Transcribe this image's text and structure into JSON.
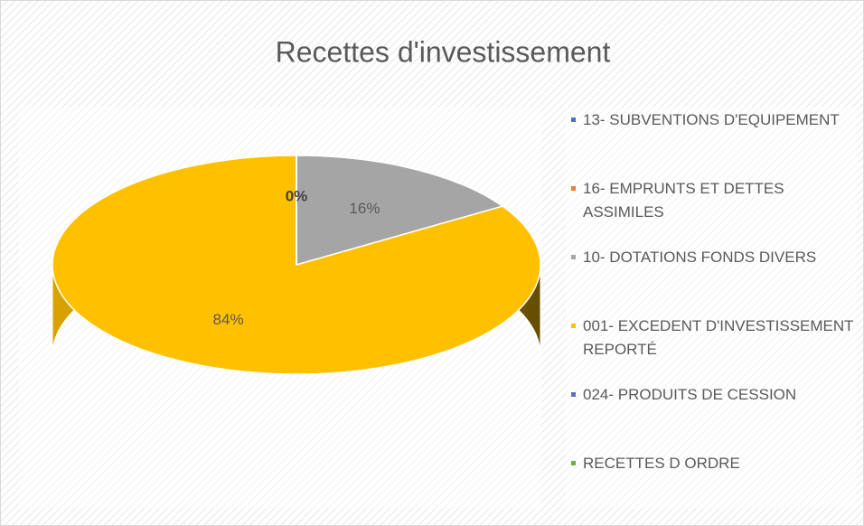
{
  "chart_data": {
    "type": "pie",
    "title": "Recettes d'investissement",
    "categories": [
      "13- SUBVENTIONS D'EQUIPEMENT",
      "16- EMPRUNTS ET DETTES ASSIMILES",
      "10- DOTATIONS FONDS DIVERS",
      "001- EXCEDENT D'INVESTISSEMENT REPORTÉ",
      "024- PRODUITS DE CESSION",
      "RECETTES D ORDRE"
    ],
    "values": [
      0,
      0,
      16,
      84,
      0,
      0
    ],
    "value_labels": [
      "0%",
      null,
      "16%",
      "84%",
      null,
      null
    ],
    "colors": [
      "#4472c4",
      "#ed7d31",
      "#a5a5a5",
      "#ffc000",
      "#5b6fc0",
      "#70ad47"
    ],
    "legend": "right"
  }
}
